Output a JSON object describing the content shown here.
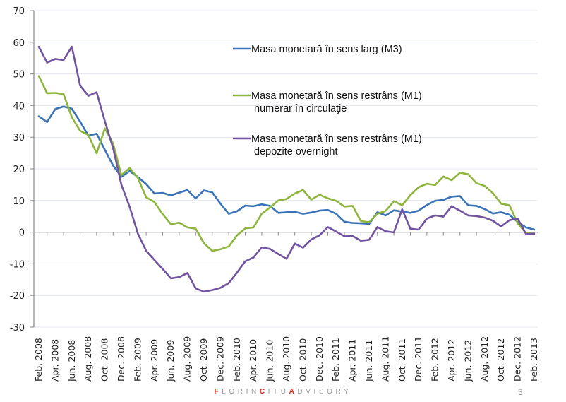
{
  "chart_data": {
    "type": "line",
    "title": "",
    "xlabel": "",
    "ylabel": "",
    "ylim": [
      -30,
      70
    ],
    "yticks": [
      -30,
      -20,
      -10,
      0,
      10,
      20,
      30,
      40,
      50,
      60,
      70
    ],
    "grid": true,
    "legend_position": "top-center (inside plot)",
    "x_tick_labels": [
      "Feb. 2008",
      "Apr. 2008",
      "Jun. 2008",
      "Aug. 2008",
      "Oct. 2008",
      "Dec. 2008",
      "Feb. 2009",
      "Apr. 2009",
      "Jun. 2009",
      "Aug. 2009",
      "Oct. 2009",
      "Dec. 2009",
      "Feb. 2010",
      "Apr. 2010",
      "Jun. 2010",
      "Aug. 2010",
      "Oct. 2010",
      "Dec. 2010",
      "Feb. 2011",
      "Apr. 2011",
      "Jun. 2011",
      "Aug. 2011",
      "Oct. 2011",
      "Dec. 2011",
      "Feb. 2012",
      "Apr. 2012",
      "Jun. 2012",
      "Aug. 2012",
      "Oct. 2012",
      "Dec. 2012",
      "Feb. 2013"
    ],
    "x_period": "monthly, Feb. 2008 – Feb. 2013",
    "series": [
      {
        "name": "Masa monetară în sens larg (M3)",
        "color": "#3a73b8",
        "values": [
          36.6,
          34.8,
          38.9,
          39.7,
          39.0,
          34.9,
          30.5,
          31.1,
          26.0,
          21.0,
          17.5,
          19.3,
          17.4,
          15.2,
          12.2,
          12.4,
          11.6,
          12.5,
          13.3,
          10.7,
          13.2,
          12.6,
          9.0,
          5.8,
          6.6,
          8.4,
          8.2,
          8.8,
          8.3,
          6.1,
          6.3,
          6.4,
          5.8,
          6.2,
          6.8,
          7.0,
          5.8,
          3.3,
          2.9,
          2.8,
          2.6,
          6.3,
          5.3,
          6.9,
          6.5,
          6.1,
          6.8,
          8.6,
          9.9,
          10.2,
          11.2,
          11.4,
          8.5,
          8.3,
          7.3,
          5.9,
          6.3,
          5.5,
          3.2,
          1.5,
          0.8
        ]
      },
      {
        "name": "Masa monetară în sens restrâns (M1) numerar în circulaţie",
        "color": "#8db53c",
        "values": [
          49.3,
          43.9,
          44.0,
          43.6,
          36.3,
          32.0,
          30.7,
          24.9,
          32.8,
          28.0,
          18.0,
          20.3,
          17.1,
          11.0,
          9.5,
          5.7,
          2.5,
          3.0,
          1.5,
          1.1,
          -3.5,
          -5.9,
          -5.4,
          -4.5,
          -1.0,
          1.2,
          1.5,
          5.8,
          7.8,
          10.0,
          10.5,
          12.2,
          13.3,
          10.3,
          11.8,
          10.7,
          9.9,
          8.1,
          8.3,
          3.5,
          3.1,
          5.8,
          6.7,
          9.8,
          8.5,
          11.7,
          14.2,
          15.3,
          14.9,
          17.6,
          16.4,
          18.8,
          18.3,
          15.5,
          14.6,
          12.3,
          9.0,
          8.5,
          2.8,
          -0.3,
          -0.5
        ]
      },
      {
        "name": "Masa monetară în sens restrâns (M1) depozite overnight",
        "color": "#7153a0",
        "values": [
          58.6,
          53.6,
          54.7,
          54.4,
          58.6,
          46.3,
          43.1,
          44.2,
          35.0,
          26.5,
          15.0,
          8.0,
          -0.5,
          -5.9,
          -8.8,
          -11.6,
          -14.6,
          -14.2,
          -12.9,
          -17.8,
          -18.8,
          -18.3,
          -17.6,
          -16.1,
          -12.8,
          -9.2,
          -8.0,
          -4.8,
          -5.3,
          -6.9,
          -8.4,
          -3.6,
          -4.9,
          -2.3,
          -1.0,
          1.6,
          0.2,
          -1.3,
          -1.2,
          -2.7,
          -2.4,
          1.6,
          0.3,
          -0.1,
          7.2,
          1.1,
          0.8,
          4.3,
          5.3,
          4.9,
          8.2,
          6.8,
          5.3,
          5.1,
          4.6,
          3.6,
          1.8,
          3.8,
          4.3,
          -0.6,
          -0.5
        ]
      }
    ]
  },
  "footer": {
    "brand_segments": [
      {
        "text": "F",
        "accent": true
      },
      {
        "text": "LORIN",
        "accent": false
      },
      {
        "text": "C",
        "accent": true
      },
      {
        "text": "ITU",
        "accent": false
      },
      {
        "text": "A",
        "accent": true
      },
      {
        "text": "DVISORY",
        "accent": false
      }
    ],
    "page_number": "3"
  }
}
